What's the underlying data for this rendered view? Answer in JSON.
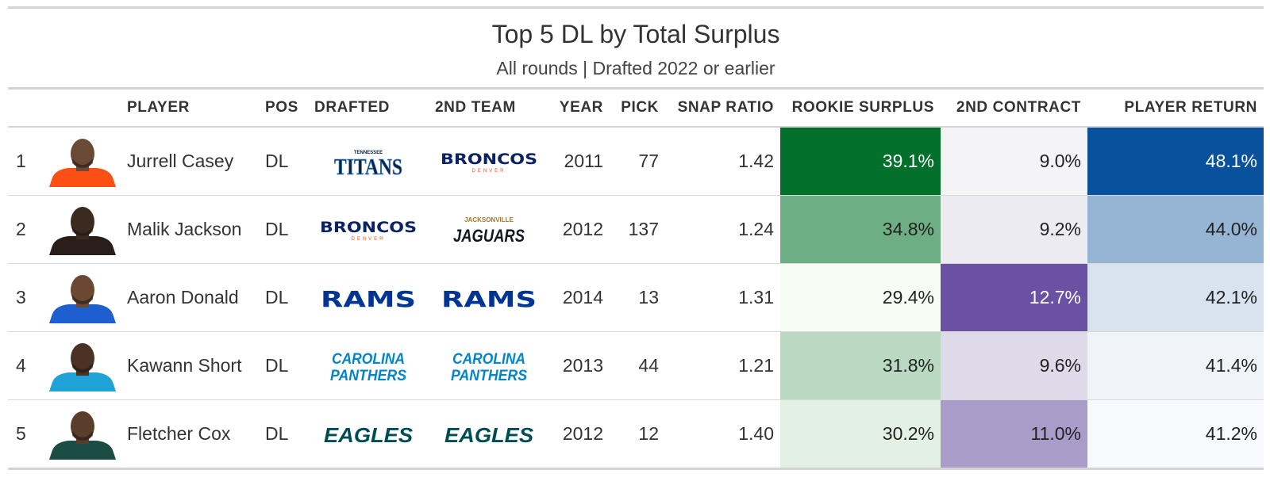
{
  "chart_data": {
    "type": "table",
    "title": "Top 5 DL by Total Surplus",
    "subtitle": "All rounds | Drafted 2022 or earlier",
    "columns": [
      "",
      "",
      "PLAYER",
      "POS",
      "DRAFTED",
      "2ND TEAM",
      "YEAR",
      "PICK",
      "SNAP RATIO",
      "ROOKIE SURPLUS",
      "2ND CONTRACT",
      "PLAYER RETURN"
    ],
    "rows": [
      {
        "rank": "1",
        "photo_colors": {
          "skin": "#6b4a35",
          "jersey": "#fb4f14"
        },
        "player": "Jurrell Casey",
        "pos": "DL",
        "drafted_logo": "titans-logo",
        "second_team_logo": "broncos-logo",
        "year": "2011",
        "pick": "77",
        "snap_ratio": "1.42",
        "rookie_surplus": "39.1%",
        "second_contract": "9.0%",
        "player_return": "48.1%",
        "rookie_surplus_value": 39.1,
        "second_contract_value": 9.0,
        "player_return_value": 48.1
      },
      {
        "rank": "2",
        "photo_colors": {
          "skin": "#3b2a20",
          "jersey": "#2a1e18"
        },
        "player": "Malik Jackson",
        "pos": "DL",
        "drafted_logo": "broncos-logo",
        "second_team_logo": "jaguars-logo",
        "year": "2012",
        "pick": "137",
        "snap_ratio": "1.24",
        "rookie_surplus": "34.8%",
        "second_contract": "9.2%",
        "player_return": "44.0%",
        "rookie_surplus_value": 34.8,
        "second_contract_value": 9.2,
        "player_return_value": 44.0
      },
      {
        "rank": "3",
        "photo_colors": {
          "skin": "#6a4834",
          "jersey": "#1e5fd0"
        },
        "player": "Aaron Donald",
        "pos": "DL",
        "drafted_logo": "rams-logo",
        "second_team_logo": "rams-logo",
        "year": "2014",
        "pick": "13",
        "snap_ratio": "1.31",
        "rookie_surplus": "29.4%",
        "second_contract": "12.7%",
        "player_return": "42.1%",
        "rookie_surplus_value": 29.4,
        "second_contract_value": 12.7,
        "player_return_value": 42.1
      },
      {
        "rank": "4",
        "photo_colors": {
          "skin": "#4a3325",
          "jersey": "#1fa3d6"
        },
        "player": "Kawann Short",
        "pos": "DL",
        "drafted_logo": "panthers-logo",
        "second_team_logo": "panthers-logo",
        "year": "2013",
        "pick": "44",
        "snap_ratio": "1.21",
        "rookie_surplus": "31.8%",
        "second_contract": "9.6%",
        "player_return": "41.4%",
        "rookie_surplus_value": 31.8,
        "second_contract_value": 9.6,
        "player_return_value": 41.4
      },
      {
        "rank": "5",
        "photo_colors": {
          "skin": "#5a3d2b",
          "jersey": "#1c4d45"
        },
        "player": "Fletcher Cox",
        "pos": "DL",
        "drafted_logo": "eagles-logo",
        "second_team_logo": "eagles-logo",
        "year": "2012",
        "pick": "12",
        "snap_ratio": "1.40",
        "rookie_surplus": "30.2%",
        "second_contract": "11.0%",
        "player_return": "41.2%",
        "rookie_surplus_value": 30.2,
        "second_contract_value": 11.0,
        "player_return_value": 41.2
      }
    ],
    "color_scales": {
      "rookie_surplus": {
        "low": "#f7fcf5",
        "high": "#00702a",
        "domain": [
          29.4,
          39.1
        ],
        "palette": "greens"
      },
      "second_contract": {
        "low": "#f4f4f6",
        "high": "#6a51a3",
        "domain": [
          9.0,
          12.7
        ],
        "palette": "purples"
      },
      "player_return": {
        "low": "#f7f9fc",
        "high": "#08519c",
        "domain": [
          41.2,
          48.1
        ],
        "palette": "blues"
      }
    }
  }
}
